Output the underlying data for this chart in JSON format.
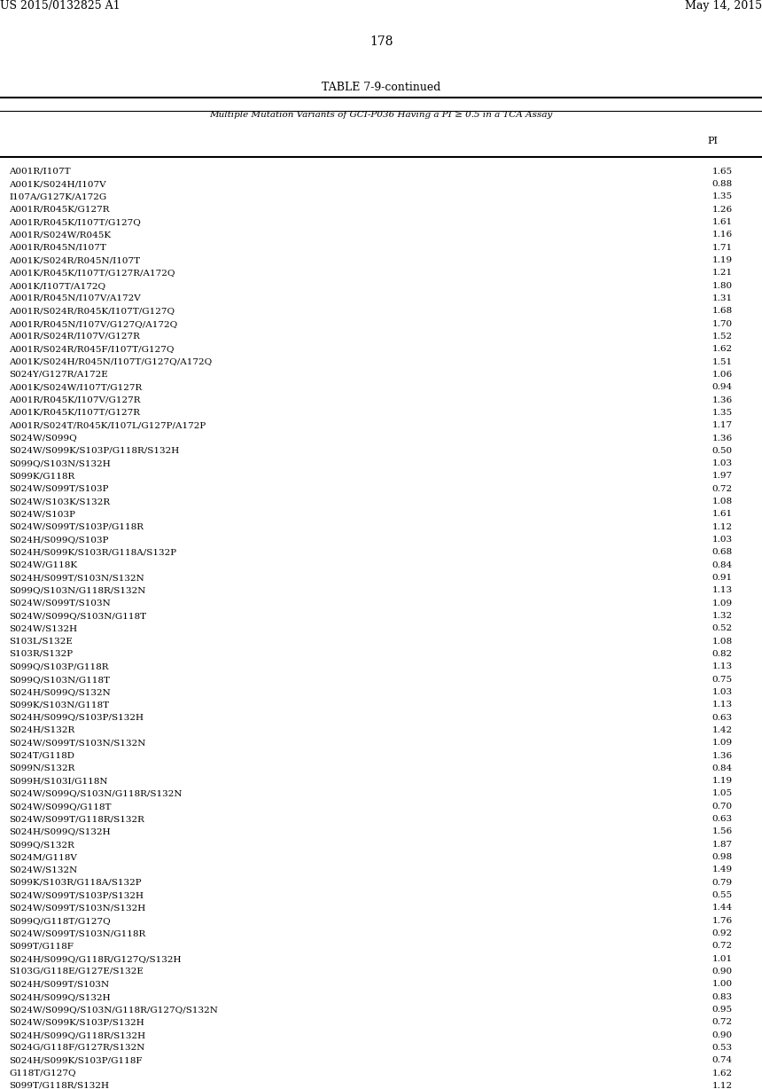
{
  "header_left": "US 2015/0132825 A1",
  "header_right": "May 14, 2015",
  "page_number": "178",
  "table_title": "TABLE 7-9-continued",
  "table_subtitle": "Multiple Mutation Variants of GCI-P036 Having a PI ≥ 0.5 in a TCA Assay",
  "col_header": "PI",
  "rows": [
    [
      "A001R/I107T",
      "1.65"
    ],
    [
      "A001K/S024H/I107V",
      "0.88"
    ],
    [
      "I107A/G127K/A172G",
      "1.35"
    ],
    [
      "A001R/R045K/G127R",
      "1.26"
    ],
    [
      "A001R/R045K/I107T/G127Q",
      "1.61"
    ],
    [
      "A001R/S024W/R045K",
      "1.16"
    ],
    [
      "A001R/R045N/I107T",
      "1.71"
    ],
    [
      "A001K/S024R/R045N/I107T",
      "1.19"
    ],
    [
      "A001K/R045K/I107T/G127R/A172Q",
      "1.21"
    ],
    [
      "A001K/I107T/A172Q",
      "1.80"
    ],
    [
      "A001R/R045N/I107V/A172V",
      "1.31"
    ],
    [
      "A001R/S024R/R045K/I107T/G127Q",
      "1.68"
    ],
    [
      "A001R/R045N/I107V/G127Q/A172Q",
      "1.70"
    ],
    [
      "A001R/S024R/I107V/G127R",
      "1.52"
    ],
    [
      "A001R/S024R/R045F/I107T/G127Q",
      "1.62"
    ],
    [
      "A001K/S024H/R045N/I107T/G127Q/A172Q",
      "1.51"
    ],
    [
      "S024Y/G127R/A172E",
      "1.06"
    ],
    [
      "A001K/S024W/I107T/G127R",
      "0.94"
    ],
    [
      "A001R/R045K/I107V/G127R",
      "1.36"
    ],
    [
      "A001K/R045K/I107T/G127R",
      "1.35"
    ],
    [
      "A001R/S024T/R045K/I107L/G127P/A172P",
      "1.17"
    ],
    [
      "S024W/S099Q",
      "1.36"
    ],
    [
      "S024W/S099K/S103P/G118R/S132H",
      "0.50"
    ],
    [
      "S099Q/S103N/S132H",
      "1.03"
    ],
    [
      "S099K/G118R",
      "1.97"
    ],
    [
      "S024W/S099T/S103P",
      "0.72"
    ],
    [
      "S024W/S103K/S132R",
      "1.08"
    ],
    [
      "S024W/S103P",
      "1.61"
    ],
    [
      "S024W/S099T/S103P/G118R",
      "1.12"
    ],
    [
      "S024H/S099Q/S103P",
      "1.03"
    ],
    [
      "S024H/S099K/S103R/G118A/S132P",
      "0.68"
    ],
    [
      "S024W/G118K",
      "0.84"
    ],
    [
      "S024H/S099T/S103N/S132N",
      "0.91"
    ],
    [
      "S099Q/S103N/G118R/S132N",
      "1.13"
    ],
    [
      "S024W/S099T/S103N",
      "1.09"
    ],
    [
      "S024W/S099Q/S103N/G118T",
      "1.32"
    ],
    [
      "S024W/S132H",
      "0.52"
    ],
    [
      "S103L/S132E",
      "1.08"
    ],
    [
      "S103R/S132P",
      "0.82"
    ],
    [
      "S099Q/S103P/G118R",
      "1.13"
    ],
    [
      "S099Q/S103N/G118T",
      "0.75"
    ],
    [
      "S024H/S099Q/S132N",
      "1.03"
    ],
    [
      "S099K/S103N/G118T",
      "1.13"
    ],
    [
      "S024H/S099Q/S103P/S132H",
      "0.63"
    ],
    [
      "S024H/S132R",
      "1.42"
    ],
    [
      "S024W/S099T/S103N/S132N",
      "1.09"
    ],
    [
      "S024T/G118D",
      "1.36"
    ],
    [
      "S099N/S132R",
      "0.84"
    ],
    [
      "S099H/S103I/G118N",
      "1.19"
    ],
    [
      "S024W/S099Q/S103N/G118R/S132N",
      "1.05"
    ],
    [
      "S024W/S099Q/G118T",
      "0.70"
    ],
    [
      "S024W/S099T/G118R/S132R",
      "0.63"
    ],
    [
      "S024H/S099Q/S132H",
      "1.56"
    ],
    [
      "S099Q/S132R",
      "1.87"
    ],
    [
      "S024M/G118V",
      "0.98"
    ],
    [
      "S024W/S132N",
      "1.49"
    ],
    [
      "S099K/S103R/G118A/S132P",
      "0.79"
    ],
    [
      "S024W/S099T/S103P/S132H",
      "0.55"
    ],
    [
      "S024W/S099T/S103N/S132H",
      "1.44"
    ],
    [
      "S099Q/G118T/G127Q",
      "1.76"
    ],
    [
      "S024W/S099T/S103N/G118R",
      "0.92"
    ],
    [
      "S099T/G118F",
      "0.72"
    ],
    [
      "S024H/S099Q/G118R/G127Q/S132H",
      "1.01"
    ],
    [
      "S103G/G118E/G127E/S132E",
      "0.90"
    ],
    [
      "S024H/S099T/S103N",
      "1.00"
    ],
    [
      "S024H/S099Q/S132H",
      "0.83"
    ],
    [
      "S024W/S099Q/S103N/G118R/G127Q/S132N",
      "0.95"
    ],
    [
      "S024W/S099K/S103P/S132H",
      "0.72"
    ],
    [
      "S024H/S099Q/G118R/S132H",
      "0.90"
    ],
    [
      "S024G/G118F/G127R/S132N",
      "0.53"
    ],
    [
      "S024H/S099K/S103P/G118F",
      "0.74"
    ],
    [
      "G118T/G127Q",
      "1.62"
    ],
    [
      "S099T/G118R/S132H",
      "1.12"
    ]
  ],
  "background_color": "#ffffff",
  "text_color": "#000000",
  "font_size_header": 9,
  "font_size_table": 7.5,
  "font_size_title": 9,
  "font_size_page": 10
}
